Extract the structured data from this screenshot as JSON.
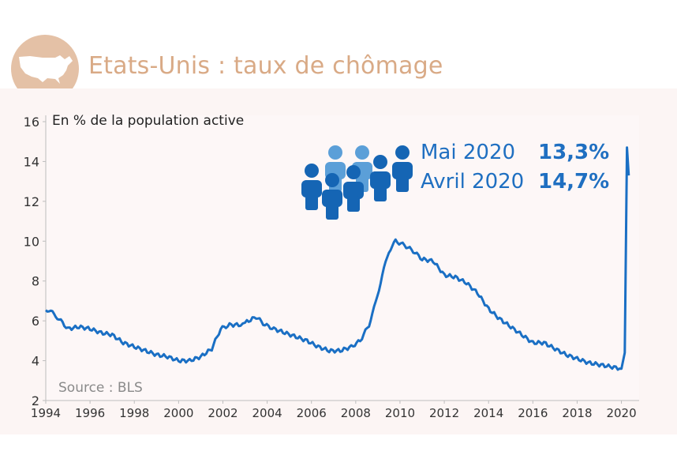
{
  "header": {
    "title": "Etats-Unis : taux de chômage",
    "icon": "usa-map-icon"
  },
  "subtitle": "En % de la population active",
  "source": "Source : BLS",
  "annotations": [
    {
      "label": "Mai 2020",
      "value": "13,3%"
    },
    {
      "label": "Avril 2020",
      "value": "14,7%"
    }
  ],
  "colors": {
    "line": "#1a6fc4",
    "accent": "#d9aa86",
    "people_dark": "#1565b4",
    "people_light": "#5b9fd8"
  },
  "chart_data": {
    "type": "line",
    "x_ticks": [
      "1994",
      "1996",
      "1998",
      "2000",
      "2002",
      "2004",
      "2006",
      "2008",
      "2010",
      "2012",
      "2014",
      "2016",
      "2018",
      "2020"
    ],
    "y_ticks": [
      "2",
      "4",
      "6",
      "8",
      "10",
      "12",
      "14",
      "16"
    ],
    "ylim": [
      2,
      16
    ],
    "xlim": [
      1994,
      2020.8
    ],
    "series": [
      {
        "values": [
          [
            1994.0,
            6.6
          ],
          [
            1994.3,
            6.4
          ],
          [
            1994.6,
            6.1
          ],
          [
            1995.0,
            5.6
          ],
          [
            1995.5,
            5.7
          ],
          [
            1996.0,
            5.6
          ],
          [
            1996.5,
            5.4
          ],
          [
            1997.0,
            5.3
          ],
          [
            1997.5,
            4.9
          ],
          [
            1998.0,
            4.7
          ],
          [
            1998.5,
            4.5
          ],
          [
            1999.0,
            4.3
          ],
          [
            1999.5,
            4.2
          ],
          [
            2000.0,
            4.0
          ],
          [
            2000.5,
            4.0
          ],
          [
            2001.0,
            4.2
          ],
          [
            2001.5,
            4.6
          ],
          [
            2001.9,
            5.6
          ],
          [
            2002.3,
            5.8
          ],
          [
            2002.8,
            5.8
          ],
          [
            2003.0,
            5.9
          ],
          [
            2003.5,
            6.2
          ],
          [
            2003.9,
            5.8
          ],
          [
            2004.3,
            5.6
          ],
          [
            2004.8,
            5.4
          ],
          [
            2005.3,
            5.2
          ],
          [
            2005.8,
            5.0
          ],
          [
            2006.3,
            4.7
          ],
          [
            2006.8,
            4.5
          ],
          [
            2007.3,
            4.5
          ],
          [
            2007.8,
            4.7
          ],
          [
            2008.2,
            5.0
          ],
          [
            2008.6,
            5.8
          ],
          [
            2008.9,
            6.9
          ],
          [
            2009.2,
            8.3
          ],
          [
            2009.5,
            9.5
          ],
          [
            2009.8,
            10.0
          ],
          [
            2010.2,
            9.8
          ],
          [
            2010.6,
            9.5
          ],
          [
            2011.0,
            9.1
          ],
          [
            2011.5,
            9.0
          ],
          [
            2012.0,
            8.3
          ],
          [
            2012.5,
            8.2
          ],
          [
            2013.0,
            7.9
          ],
          [
            2013.5,
            7.4
          ],
          [
            2014.0,
            6.6
          ],
          [
            2014.5,
            6.1
          ],
          [
            2015.0,
            5.7
          ],
          [
            2015.5,
            5.3
          ],
          [
            2016.0,
            4.9
          ],
          [
            2016.5,
            4.9
          ],
          [
            2017.0,
            4.6
          ],
          [
            2017.5,
            4.3
          ],
          [
            2018.0,
            4.1
          ],
          [
            2018.5,
            3.9
          ],
          [
            2019.0,
            3.8
          ],
          [
            2019.5,
            3.7
          ],
          [
            2020.0,
            3.6
          ],
          [
            2020.15,
            4.4
          ],
          [
            2020.25,
            14.7
          ],
          [
            2020.33,
            13.3
          ]
        ]
      }
    ]
  }
}
